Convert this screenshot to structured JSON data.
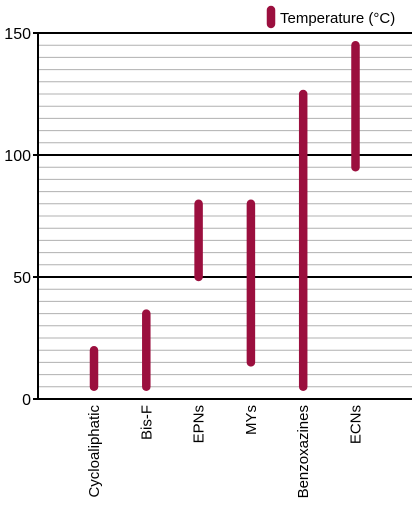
{
  "chart_data": {
    "type": "bar",
    "categories": [
      "Cycloaliphatic",
      "Bis-F",
      "EPNs",
      "MYs",
      "Benzoxazines",
      "ECNs"
    ],
    "series": [
      {
        "name": "Temperature (°C)",
        "ranges": [
          [
            5,
            20
          ],
          [
            5,
            35
          ],
          [
            50,
            80
          ],
          [
            15,
            80
          ],
          [
            5,
            125
          ],
          [
            95,
            145
          ]
        ]
      }
    ],
    "ylim": [
      0,
      150
    ],
    "yticks": [
      0,
      50,
      100,
      150
    ],
    "minor_grid_step": 5,
    "grid": true,
    "legend_position": "top-right",
    "xlabel": "",
    "ylabel": "",
    "title": ""
  },
  "colors": {
    "series": "#9b0f3e",
    "major_grid": "#000000",
    "minor_grid": "#b0b0b0",
    "axis": "#000000"
  }
}
